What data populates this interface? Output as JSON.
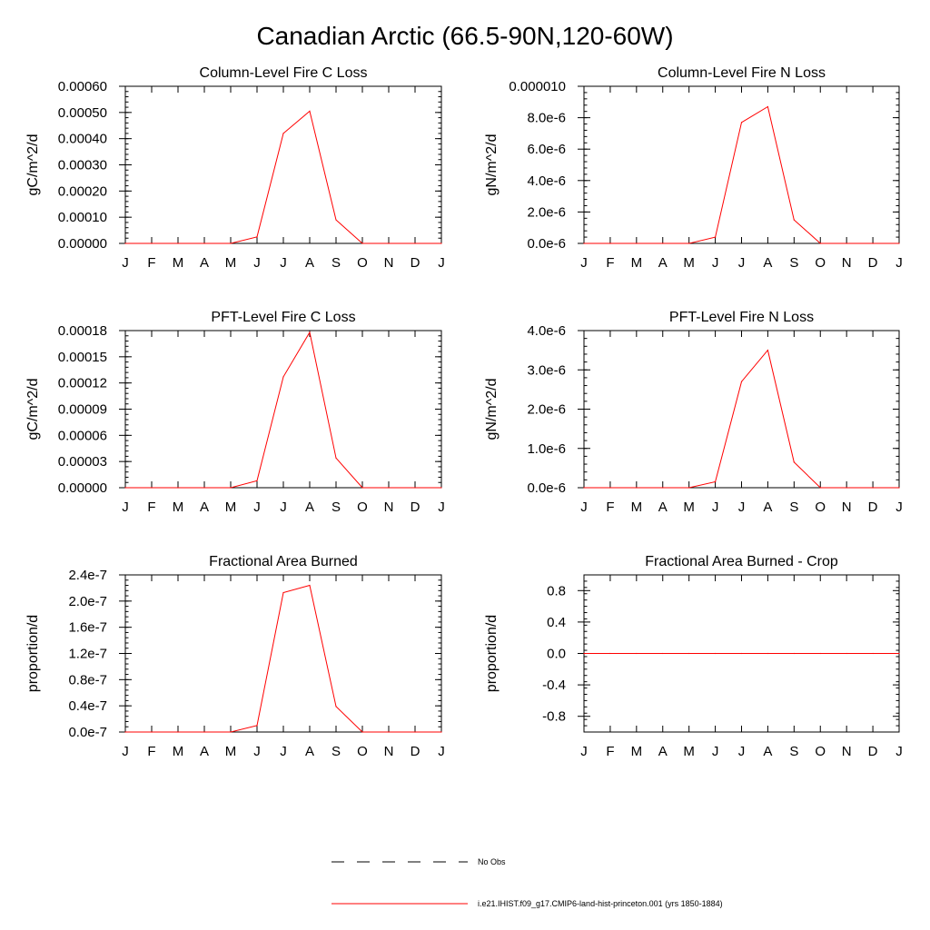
{
  "figure": {
    "title": "Canadian Arctic (66.5-90N,120-60W)",
    "line_color": "#ff0000",
    "axis_color": "#000000"
  },
  "legend": {
    "items": [
      {
        "label": "No Obs",
        "style": "dashed",
        "color": "#000000"
      },
      {
        "label": "i.e21.IHIST.f09_g17.CMIP6-land-hist-princeton.001 (yrs 1850-1884)",
        "style": "solid",
        "color": "#ff0000"
      }
    ]
  },
  "chart_data": [
    {
      "type": "line",
      "title": "Column-Level Fire C Loss",
      "ylabel": "gC/m^2/d",
      "categories": [
        "J",
        "F",
        "M",
        "A",
        "M",
        "J",
        "J",
        "A",
        "S",
        "O",
        "N",
        "D",
        "J"
      ],
      "ylim": [
        0,
        0.0006
      ],
      "yticks": [
        0,
        0.0001,
        0.0002,
        0.0003,
        0.0004,
        0.0005,
        0.0006
      ],
      "yticklabels": [
        "0.00000",
        "0.00010",
        "0.00020",
        "0.00030",
        "0.00040",
        "0.00050",
        "0.00060"
      ],
      "series": [
        {
          "values": [
            0,
            0,
            0,
            0,
            0,
            2.5e-05,
            0.00042,
            0.000505,
            9e-05,
            0,
            0,
            0,
            0
          ]
        }
      ]
    },
    {
      "type": "line",
      "title": "Column-Level Fire N Loss",
      "ylabel": "gN/m^2/d",
      "categories": [
        "J",
        "F",
        "M",
        "A",
        "M",
        "J",
        "J",
        "A",
        "S",
        "O",
        "N",
        "D",
        "J"
      ],
      "ylim": [
        0,
        1e-05
      ],
      "yticks": [
        0,
        2e-06,
        4e-06,
        6e-06,
        8e-06,
        1e-05
      ],
      "yticklabels": [
        "0.0e-6",
        "2.0e-6",
        "4.0e-6",
        "6.0e-6",
        "8.0e-6",
        "0.000010"
      ],
      "series": [
        {
          "values": [
            0,
            0,
            0,
            0,
            0,
            4e-07,
            7.7e-06,
            8.7e-06,
            1.5e-06,
            0,
            0,
            0,
            0
          ]
        }
      ]
    },
    {
      "type": "line",
      "title": "PFT-Level Fire C Loss",
      "ylabel": "gC/m^2/d",
      "categories": [
        "J",
        "F",
        "M",
        "A",
        "M",
        "J",
        "J",
        "A",
        "S",
        "O",
        "N",
        "D",
        "J"
      ],
      "ylim": [
        0,
        0.00018
      ],
      "yticks": [
        0,
        3e-05,
        6e-05,
        9e-05,
        0.00012,
        0.00015,
        0.00018
      ],
      "yticklabels": [
        "0.00000",
        "0.00003",
        "0.00006",
        "0.00009",
        "0.00012",
        "0.00015",
        "0.00018"
      ],
      "series": [
        {
          "values": [
            0,
            0,
            0,
            0,
            0,
            8e-06,
            0.000127,
            0.000178,
            3.4e-05,
            0,
            0,
            0,
            0
          ]
        }
      ]
    },
    {
      "type": "line",
      "title": "PFT-Level Fire N Loss",
      "ylabel": "gN/m^2/d",
      "categories": [
        "J",
        "F",
        "M",
        "A",
        "M",
        "J",
        "J",
        "A",
        "S",
        "O",
        "N",
        "D",
        "J"
      ],
      "ylim": [
        0,
        4e-06
      ],
      "yticks": [
        0,
        1e-06,
        2e-06,
        3e-06,
        4e-06
      ],
      "yticklabels": [
        "0.0e-6",
        "1.0e-6",
        "2.0e-6",
        "3.0e-6",
        "4.0e-6"
      ],
      "series": [
        {
          "values": [
            0,
            0,
            0,
            0,
            0,
            1.5e-07,
            2.7e-06,
            3.5e-06,
            6.5e-07,
            0,
            0,
            0,
            0
          ]
        }
      ]
    },
    {
      "type": "line",
      "title": "Fractional Area Burned",
      "ylabel": "proportion/d",
      "categories": [
        "J",
        "F",
        "M",
        "A",
        "M",
        "J",
        "J",
        "A",
        "S",
        "O",
        "N",
        "D",
        "J"
      ],
      "ylim": [
        0,
        2.4e-07
      ],
      "yticks": [
        0,
        4e-08,
        8e-08,
        1.2e-07,
        1.6e-07,
        2e-07,
        2.4e-07
      ],
      "yticklabels": [
        "0.0e-7",
        "0.4e-7",
        "0.8e-7",
        "1.2e-7",
        "1.6e-7",
        "2.0e-7",
        "2.4e-7"
      ],
      "series": [
        {
          "values": [
            0,
            0,
            0,
            0,
            0,
            1e-08,
            2.13e-07,
            2.24e-07,
            3.9e-08,
            0,
            0,
            0,
            0
          ]
        }
      ]
    },
    {
      "type": "line",
      "title": "Fractional Area Burned - Crop",
      "ylabel": "proportion/d",
      "categories": [
        "J",
        "F",
        "M",
        "A",
        "M",
        "J",
        "J",
        "A",
        "S",
        "O",
        "N",
        "D",
        "J"
      ],
      "ylim": [
        -1,
        1
      ],
      "yticks": [
        -0.8,
        -0.4,
        0,
        0.4,
        0.8
      ],
      "yticklabels": [
        "-0.8",
        "-0.4",
        "0.0",
        "0.4",
        "0.8"
      ],
      "series": [
        {
          "values": [
            0,
            0,
            0,
            0,
            0,
            0,
            0,
            0,
            0,
            0,
            0,
            0,
            0
          ]
        }
      ]
    }
  ]
}
